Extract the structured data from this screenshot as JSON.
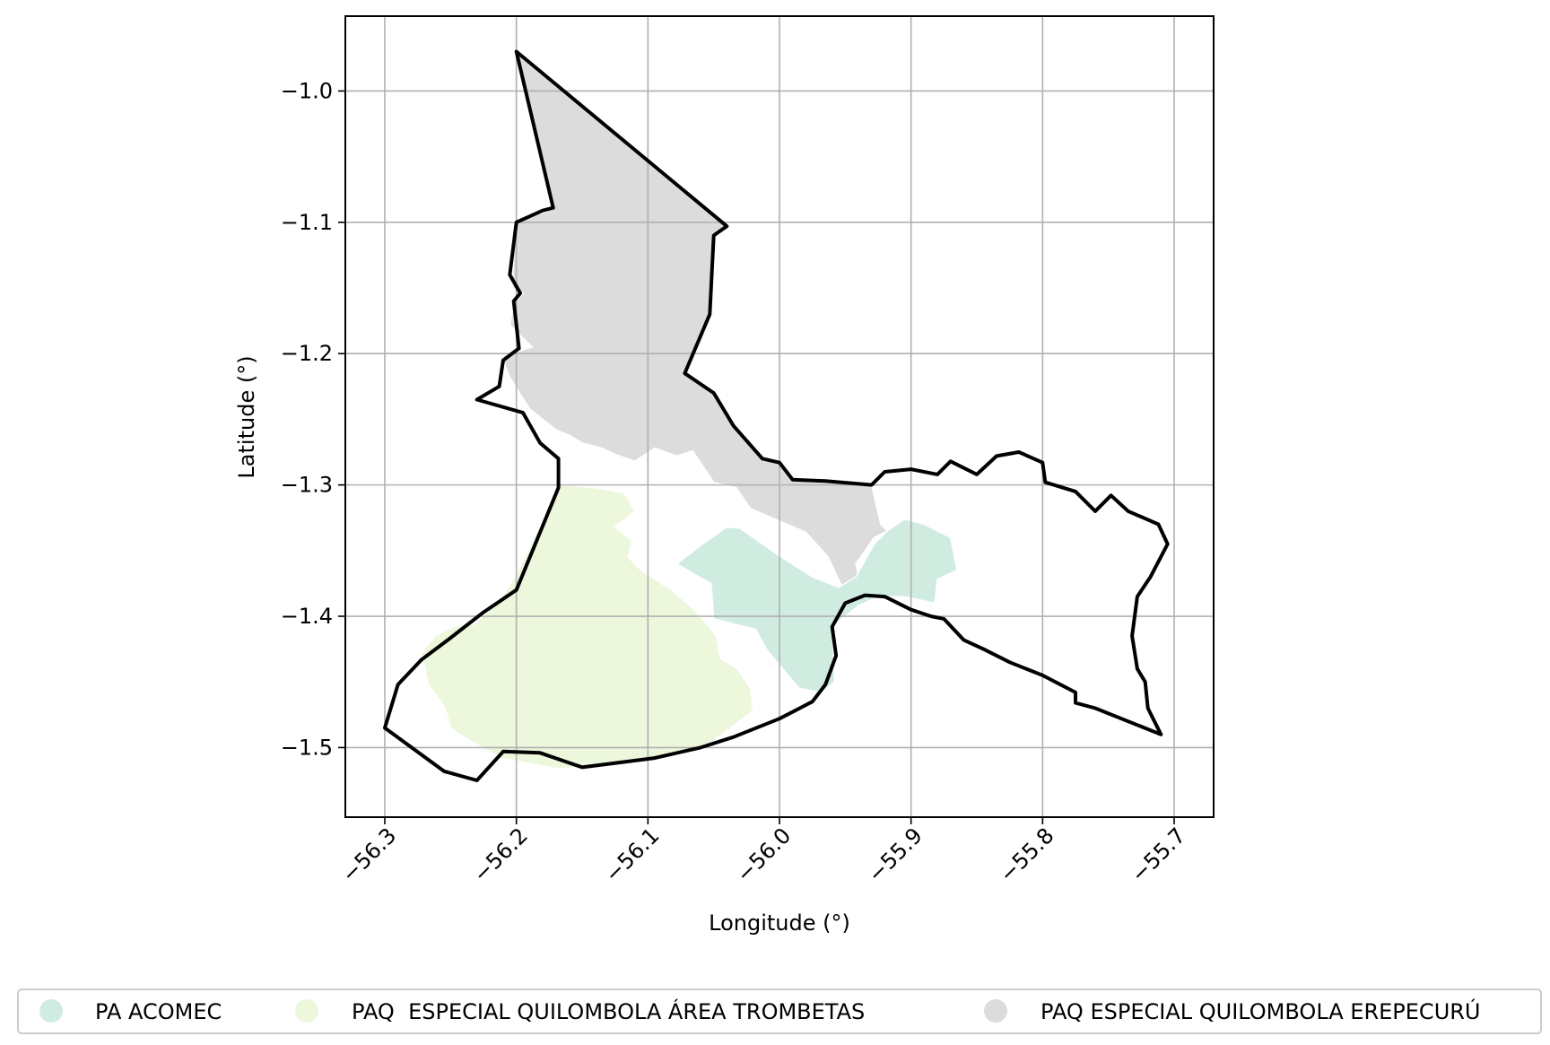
{
  "chart_data": {
    "type": "map",
    "title": "",
    "xlabel": "Longitude (°)",
    "ylabel": "Latitude (°)",
    "xlim": [
      -56.33,
      -55.67
    ],
    "ylim": [
      -1.553,
      -0.943
    ],
    "xticks": [
      -56.3,
      -56.2,
      -56.1,
      -56.0,
      -55.9,
      -55.8,
      -55.7
    ],
    "xtick_labels": [
      "−56.3",
      "−56.2",
      "−56.1",
      "−56.0",
      "−55.9",
      "−55.8",
      "−55.7"
    ],
    "yticks": [
      -1.0,
      -1.1,
      -1.2,
      -1.3,
      -1.4,
      -1.5
    ],
    "ytick_labels": [
      "−1.0",
      "−1.1",
      "−1.2",
      "−1.3",
      "−1.4",
      "−1.5"
    ],
    "grid": true,
    "legend_position": "bottom",
    "colors": {
      "pa_acomec": "#d0ece0",
      "trombetas": "#edf7dc",
      "erepecuru": "#dcdcdc",
      "boundary": "#000000",
      "grid": "#b0b0b0"
    },
    "legend": [
      {
        "label": "PA ACOMEC",
        "color": "#d0ece0"
      },
      {
        "label": "PAQ  ESPECIAL QUILOMBOLA ÁREA TROMBETAS",
        "color": "#edf7dc"
      },
      {
        "label": "PAQ ESPECIAL QUILOMBOLA EREPECURÚ",
        "color": "#dcdcdc"
      }
    ],
    "regions": [
      {
        "name": "PAQ ESPECIAL QUILOMBOLA EREPECURÚ",
        "color": "#dcdcdc",
        "coords": [
          [
            -56.2,
            -0.97
          ],
          [
            -56.04,
            -1.103
          ],
          [
            -56.05,
            -1.11
          ],
          [
            -56.053,
            -1.17
          ],
          [
            -56.072,
            -1.215
          ],
          [
            -56.05,
            -1.23
          ],
          [
            -56.035,
            -1.255
          ],
          [
            -56.013,
            -1.28
          ],
          [
            -56.0,
            -1.283
          ],
          [
            -55.99,
            -1.296
          ],
          [
            -55.965,
            -1.297
          ],
          [
            -55.93,
            -1.3
          ],
          [
            -55.923,
            -1.33
          ],
          [
            -55.918,
            -1.335
          ],
          [
            -55.928,
            -1.34
          ],
          [
            -55.942,
            -1.36
          ],
          [
            -55.937,
            -1.385
          ],
          [
            -55.95,
            -1.383
          ],
          [
            -55.963,
            -1.355
          ],
          [
            -55.98,
            -1.336
          ],
          [
            -56.022,
            -1.318
          ],
          [
            -56.033,
            -1.302
          ],
          [
            -56.05,
            -1.298
          ],
          [
            -56.066,
            -1.274
          ],
          [
            -56.078,
            -1.278
          ],
          [
            -56.095,
            -1.272
          ],
          [
            -56.11,
            -1.282
          ],
          [
            -56.124,
            -1.277
          ],
          [
            -56.135,
            -1.272
          ],
          [
            -56.15,
            -1.268
          ],
          [
            -56.16,
            -1.262
          ],
          [
            -56.17,
            -1.258
          ],
          [
            -56.19,
            -1.242
          ],
          [
            -56.205,
            -1.218
          ],
          [
            -56.21,
            -1.205
          ],
          [
            -56.198,
            -1.198
          ],
          [
            -56.188,
            -1.195
          ],
          [
            -56.205,
            -1.178
          ],
          [
            -56.202,
            -1.163
          ],
          [
            -56.195,
            -1.154
          ],
          [
            -56.203,
            -1.15
          ],
          [
            -56.202,
            -1.125
          ],
          [
            -56.2,
            -1.098
          ],
          [
            -56.19,
            -1.096
          ],
          [
            -56.172,
            -1.09
          ]
        ]
      },
      {
        "name": "PAQ  ESPECIAL QUILOMBOLA ÁREA TROMBETAS",
        "color": "#edf7dc",
        "coords": [
          [
            -56.167,
            -1.3
          ],
          [
            -56.14,
            -1.302
          ],
          [
            -56.118,
            -1.306
          ],
          [
            -56.11,
            -1.32
          ],
          [
            -56.125,
            -1.332
          ],
          [
            -56.112,
            -1.342
          ],
          [
            -56.115,
            -1.355
          ],
          [
            -56.105,
            -1.365
          ],
          [
            -56.082,
            -1.38
          ],
          [
            -56.068,
            -1.392
          ],
          [
            -56.056,
            -1.405
          ],
          [
            -56.048,
            -1.415
          ],
          [
            -56.045,
            -1.432
          ],
          [
            -56.032,
            -1.44
          ],
          [
            -56.022,
            -1.455
          ],
          [
            -56.02,
            -1.472
          ],
          [
            -56.028,
            -1.478
          ],
          [
            -56.05,
            -1.495
          ],
          [
            -56.085,
            -1.508
          ],
          [
            -56.125,
            -1.514
          ],
          [
            -56.17,
            -1.516
          ],
          [
            -56.212,
            -1.508
          ],
          [
            -56.24,
            -1.492
          ],
          [
            -56.25,
            -1.485
          ],
          [
            -56.254,
            -1.47
          ],
          [
            -56.267,
            -1.452
          ],
          [
            -56.272,
            -1.428
          ],
          [
            -56.262,
            -1.415
          ],
          [
            -56.248,
            -1.408
          ],
          [
            -56.232,
            -1.406
          ],
          [
            -56.22,
            -1.395
          ],
          [
            -56.21,
            -1.384
          ],
          [
            -56.2,
            -1.368
          ]
        ]
      },
      {
        "name": "PA ACOMEC",
        "color": "#d0ece0",
        "coords": [
          [
            -56.04,
            -1.332
          ],
          [
            -56.03,
            -1.333
          ],
          [
            -56.0,
            -1.354
          ],
          [
            -55.975,
            -1.37
          ],
          [
            -55.955,
            -1.378
          ],
          [
            -55.942,
            -1.37
          ],
          [
            -55.928,
            -1.345
          ],
          [
            -55.918,
            -1.335
          ],
          [
            -55.905,
            -1.326
          ],
          [
            -55.89,
            -1.33
          ],
          [
            -55.87,
            -1.34
          ],
          [
            -55.865,
            -1.365
          ],
          [
            -55.88,
            -1.372
          ],
          [
            -55.882,
            -1.39
          ],
          [
            -55.905,
            -1.385
          ],
          [
            -55.925,
            -1.385
          ],
          [
            -55.94,
            -1.392
          ],
          [
            -55.96,
            -1.408
          ],
          [
            -55.958,
            -1.45
          ],
          [
            -55.968,
            -1.458
          ],
          [
            -55.985,
            -1.455
          ],
          [
            -56.01,
            -1.425
          ],
          [
            -56.018,
            -1.41
          ],
          [
            -56.05,
            -1.402
          ],
          [
            -56.052,
            -1.375
          ],
          [
            -56.065,
            -1.368
          ],
          [
            -56.078,
            -1.36
          ],
          [
            -56.06,
            -1.346
          ]
        ]
      }
    ],
    "boundary": [
      [
        -56.2,
        -0.97
      ],
      [
        -56.04,
        -1.103
      ],
      [
        -56.05,
        -1.11
      ],
      [
        -56.053,
        -1.17
      ],
      [
        -56.072,
        -1.215
      ],
      [
        -56.05,
        -1.23
      ],
      [
        -56.035,
        -1.255
      ],
      [
        -56.013,
        -1.28
      ],
      [
        -56.0,
        -1.283
      ],
      [
        -55.99,
        -1.296
      ],
      [
        -55.965,
        -1.297
      ],
      [
        -55.93,
        -1.3
      ],
      [
        -55.92,
        -1.29
      ],
      [
        -55.9,
        -1.288
      ],
      [
        -55.88,
        -1.292
      ],
      [
        -55.87,
        -1.282
      ],
      [
        -55.85,
        -1.292
      ],
      [
        -55.835,
        -1.278
      ],
      [
        -55.818,
        -1.275
      ],
      [
        -55.8,
        -1.283
      ],
      [
        -55.798,
        -1.298
      ],
      [
        -55.775,
        -1.305
      ],
      [
        -55.76,
        -1.32
      ],
      [
        -55.748,
        -1.308
      ],
      [
        -55.735,
        -1.32
      ],
      [
        -55.712,
        -1.33
      ],
      [
        -55.705,
        -1.345
      ],
      [
        -55.718,
        -1.37
      ],
      [
        -55.728,
        -1.385
      ],
      [
        -55.732,
        -1.415
      ],
      [
        -55.728,
        -1.44
      ],
      [
        -55.722,
        -1.45
      ],
      [
        -55.72,
        -1.47
      ],
      [
        -55.71,
        -1.49
      ],
      [
        -55.76,
        -1.47
      ],
      [
        -55.775,
        -1.466
      ],
      [
        -55.775,
        -1.458
      ],
      [
        -55.8,
        -1.445
      ],
      [
        -55.825,
        -1.435
      ],
      [
        -55.845,
        -1.425
      ],
      [
        -55.86,
        -1.418
      ],
      [
        -55.875,
        -1.402
      ],
      [
        -55.885,
        -1.4
      ],
      [
        -55.9,
        -1.395
      ],
      [
        -55.92,
        -1.385
      ],
      [
        -55.935,
        -1.384
      ],
      [
        -55.95,
        -1.39
      ],
      [
        -55.96,
        -1.408
      ],
      [
        -55.957,
        -1.43
      ],
      [
        -55.965,
        -1.452
      ],
      [
        -55.975,
        -1.465
      ],
      [
        -56.0,
        -1.478
      ],
      [
        -56.035,
        -1.492
      ],
      [
        -56.06,
        -1.5
      ],
      [
        -56.095,
        -1.508
      ],
      [
        -56.15,
        -1.515
      ],
      [
        -56.182,
        -1.504
      ],
      [
        -56.21,
        -1.503
      ],
      [
        -56.23,
        -1.525
      ],
      [
        -56.255,
        -1.518
      ],
      [
        -56.3,
        -1.485
      ],
      [
        -56.29,
        -1.452
      ],
      [
        -56.272,
        -1.433
      ],
      [
        -56.252,
        -1.418
      ],
      [
        -56.225,
        -1.397
      ],
      [
        -56.2,
        -1.38
      ],
      [
        -56.168,
        -1.302
      ],
      [
        -56.168,
        -1.28
      ],
      [
        -56.182,
        -1.268
      ],
      [
        -56.195,
        -1.245
      ],
      [
        -56.23,
        -1.235
      ],
      [
        -56.213,
        -1.225
      ],
      [
        -56.21,
        -1.205
      ],
      [
        -56.198,
        -1.196
      ],
      [
        -56.202,
        -1.16
      ],
      [
        -56.197,
        -1.154
      ],
      [
        -56.205,
        -1.14
      ],
      [
        -56.2,
        -1.1
      ],
      [
        -56.18,
        -1.091
      ],
      [
        -56.172,
        -1.089
      ]
    ]
  }
}
